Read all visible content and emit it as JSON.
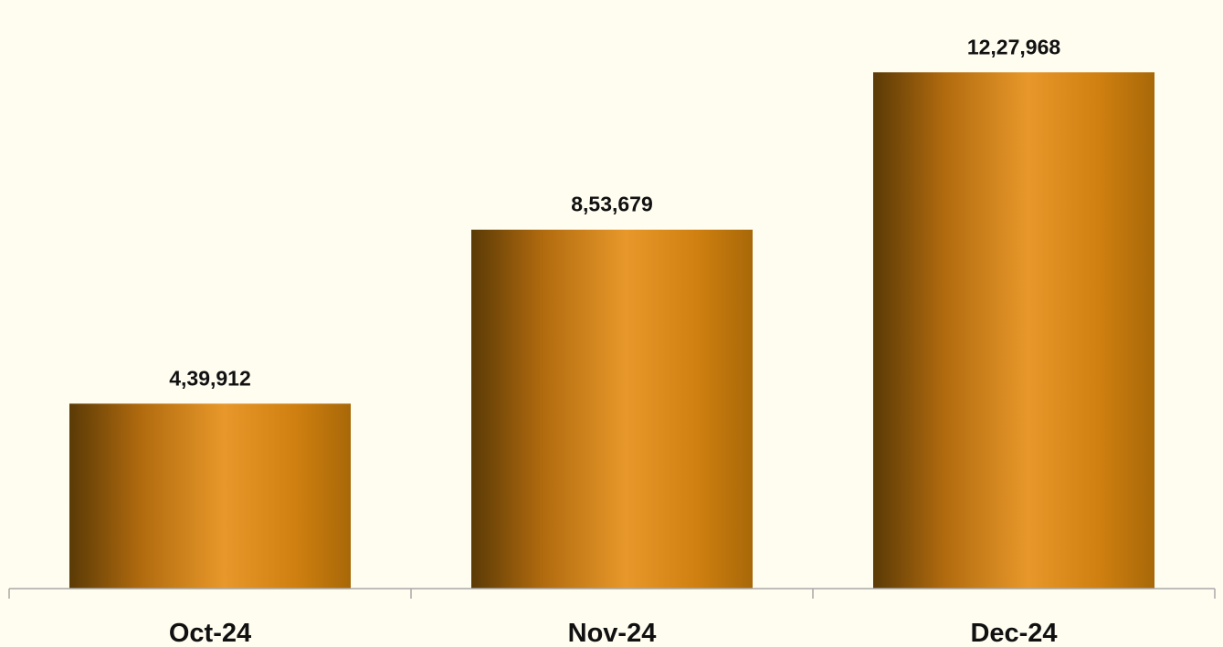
{
  "chart_data": {
    "type": "bar",
    "title": "",
    "xlabel": "",
    "ylabel": "",
    "categories": [
      "Oct-24",
      "Nov-24",
      "Dec-24"
    ],
    "values": [
      439912,
      853679,
      1227968
    ],
    "data_labels": [
      "4,39,912",
      "8,53,679",
      "12,27,968"
    ],
    "ylim": [
      0,
      1400000
    ],
    "grid": false,
    "legend": "none",
    "y_axis_visible": false,
    "colors": {
      "bar_dark": "#5a3a06",
      "bar_mid": "#c9780f",
      "bar_light": "#e8982a",
      "bar_edge": "#a86808",
      "axis": "#a8a8a8",
      "background": "#fffcf0"
    }
  }
}
